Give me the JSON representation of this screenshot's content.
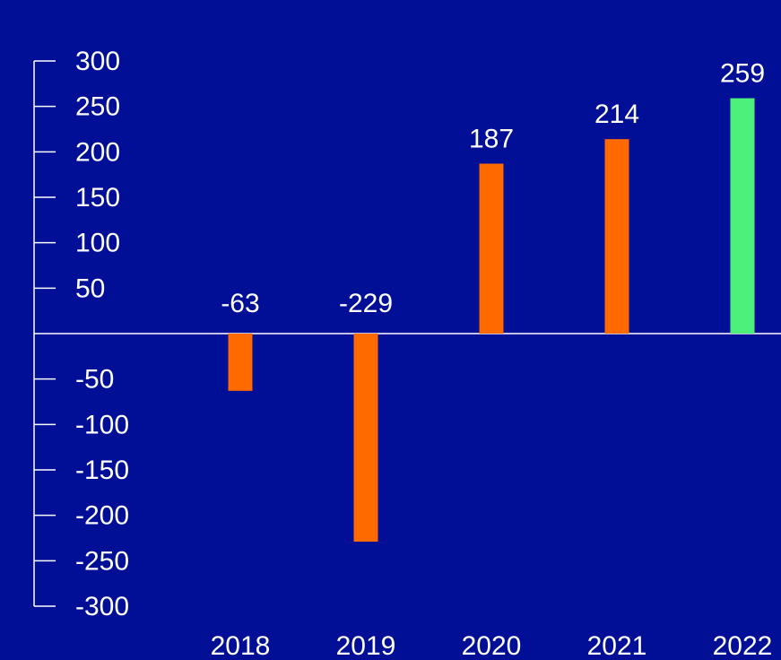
{
  "colors": {
    "background": "#000f96",
    "text": "#ffffff",
    "axis": "#ffffff",
    "bar": "#ff6a00",
    "bar_highlight": "#4cf07a"
  },
  "chart_data": {
    "type": "bar",
    "title": "",
    "xlabel": "",
    "ylabel": "",
    "categories": [
      "2018",
      "2019",
      "2020",
      "2021",
      "2022"
    ],
    "values": [
      -63,
      -229,
      187,
      214,
      259
    ],
    "data_labels": [
      "-63",
      "-229",
      "187",
      "214",
      "259"
    ],
    "highlight_category": "2022",
    "ylim": [
      -300,
      300
    ],
    "y_ticks": [
      300,
      250,
      200,
      150,
      100,
      50,
      -50,
      -100,
      -150,
      -200,
      -250,
      -300
    ],
    "y_tick_labels": [
      "300",
      "250",
      "200",
      "150",
      "100",
      "50",
      "-50",
      "-100",
      "-150",
      "-200",
      "-250",
      "-300"
    ],
    "grid": false,
    "legend": "none"
  }
}
